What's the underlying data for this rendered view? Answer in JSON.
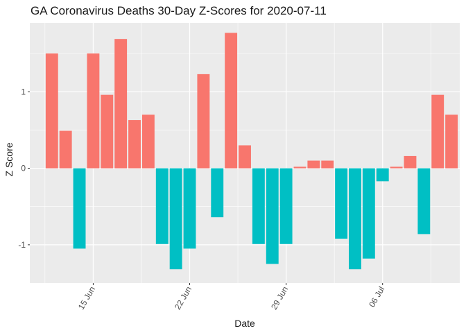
{
  "chart_data": {
    "type": "bar",
    "title": "GA Coronavirus Deaths 30-Day Z-Scores for 2020-07-11",
    "xlabel": "Date",
    "ylabel": "Z Score",
    "x_tick_labels": [
      {
        "label": "15 Jun",
        "date": "2020-06-15"
      },
      {
        "label": "22 Jun",
        "date": "2020-06-22"
      },
      {
        "label": "29 Jun",
        "date": "2020-06-29"
      },
      {
        "label": "06 Jul",
        "date": "2020-07-06"
      }
    ],
    "y_ticks": [
      -1,
      0,
      1
    ],
    "y_tick_labels": [
      "-1",
      "0",
      "1"
    ],
    "ylim": [
      -1.5,
      1.9
    ],
    "xlim": [
      "2020-06-11",
      "2020-07-11"
    ],
    "grid": true,
    "legend": "none",
    "colors": {
      "positive": "#F8766D",
      "negative": "#00BFC4",
      "panel": "#EBEBEB",
      "grid_major": "#FFFFFF"
    },
    "x": [
      "2020-06-12",
      "2020-06-13",
      "2020-06-14",
      "2020-06-15",
      "2020-06-16",
      "2020-06-17",
      "2020-06-18",
      "2020-06-19",
      "2020-06-20",
      "2020-06-21",
      "2020-06-22",
      "2020-06-23",
      "2020-06-24",
      "2020-06-25",
      "2020-06-26",
      "2020-06-27",
      "2020-06-28",
      "2020-06-29",
      "2020-06-30",
      "2020-07-01",
      "2020-07-02",
      "2020-07-03",
      "2020-07-04",
      "2020-07-05",
      "2020-07-06",
      "2020-07-07",
      "2020-07-08",
      "2020-07-09",
      "2020-07-10",
      "2020-07-11"
    ],
    "values": [
      1.5,
      0.49,
      -1.05,
      1.5,
      0.96,
      1.69,
      0.63,
      0.7,
      -0.99,
      -1.32,
      -1.05,
      1.23,
      -0.64,
      1.77,
      0.3,
      -0.99,
      -1.25,
      -0.99,
      0.02,
      0.1,
      0.1,
      -0.92,
      -1.32,
      -1.18,
      -0.17,
      0.02,
      0.16,
      -0.86,
      0.96,
      0.7
    ]
  }
}
